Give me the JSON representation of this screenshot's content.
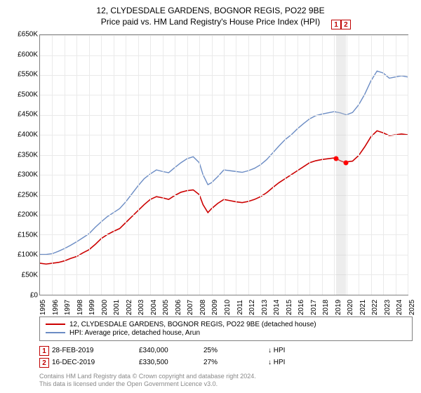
{
  "title_line1": "12, CLYDESDALE GARDENS, BOGNOR REGIS, PO22 9BE",
  "title_line2": "Price paid vs. HM Land Registry's House Price Index (HPI)",
  "chart": {
    "type": "line",
    "xlim": [
      1995,
      2025
    ],
    "ylim": [
      0,
      650000
    ],
    "ytick_step": 50000,
    "xtick_step": 1,
    "yticks": [
      "£0",
      "£50K",
      "£100K",
      "£150K",
      "£200K",
      "£250K",
      "£300K",
      "£350K",
      "£400K",
      "£450K",
      "£500K",
      "£550K",
      "£600K",
      "£650K"
    ],
    "xticks": [
      "1995",
      "1996",
      "1997",
      "1998",
      "1999",
      "2000",
      "2001",
      "2002",
      "2003",
      "2004",
      "2005",
      "2006",
      "2007",
      "2008",
      "2009",
      "2010",
      "2011",
      "2012",
      "2013",
      "2014",
      "2015",
      "2016",
      "2017",
      "2018",
      "2019",
      "2020",
      "2021",
      "2022",
      "2023",
      "2024",
      "2025"
    ],
    "grid_color": "#eaeaea",
    "border_color": "#808080",
    "background_color": "#ffffff",
    "series": [
      {
        "name": "property",
        "color": "#cc0000",
        "width": 1.6,
        "data": [
          [
            1995,
            78000
          ],
          [
            1995.5,
            76000
          ],
          [
            1996,
            78000
          ],
          [
            1996.5,
            80000
          ],
          [
            1997,
            84000
          ],
          [
            1997.5,
            90000
          ],
          [
            1998,
            95000
          ],
          [
            1998.5,
            104000
          ],
          [
            1999,
            112000
          ],
          [
            1999.5,
            125000
          ],
          [
            2000,
            140000
          ],
          [
            2000.5,
            150000
          ],
          [
            2001,
            158000
          ],
          [
            2001.5,
            165000
          ],
          [
            2002,
            180000
          ],
          [
            2002.5,
            195000
          ],
          [
            2003,
            210000
          ],
          [
            2003.5,
            225000
          ],
          [
            2004,
            238000
          ],
          [
            2004.5,
            245000
          ],
          [
            2005,
            242000
          ],
          [
            2005.5,
            238000
          ],
          [
            2006,
            248000
          ],
          [
            2006.5,
            256000
          ],
          [
            2007,
            260000
          ],
          [
            2007.5,
            262000
          ],
          [
            2008,
            250000
          ],
          [
            2008.3,
            225000
          ],
          [
            2008.7,
            205000
          ],
          [
            2009,
            215000
          ],
          [
            2009.5,
            228000
          ],
          [
            2010,
            238000
          ],
          [
            2010.5,
            235000
          ],
          [
            2011,
            232000
          ],
          [
            2011.5,
            230000
          ],
          [
            2012,
            233000
          ],
          [
            2012.5,
            238000
          ],
          [
            2013,
            245000
          ],
          [
            2013.5,
            255000
          ],
          [
            2014,
            268000
          ],
          [
            2014.5,
            280000
          ],
          [
            2015,
            290000
          ],
          [
            2015.5,
            300000
          ],
          [
            2016,
            310000
          ],
          [
            2016.5,
            320000
          ],
          [
            2017,
            330000
          ],
          [
            2017.5,
            335000
          ],
          [
            2018,
            338000
          ],
          [
            2018.5,
            340000
          ],
          [
            2019,
            342000
          ],
          [
            2019.2,
            340000
          ],
          [
            2019.5,
            335000
          ],
          [
            2019.9,
            330500
          ],
          [
            2020,
            332000
          ],
          [
            2020.5,
            334000
          ],
          [
            2021,
            348000
          ],
          [
            2021.5,
            370000
          ],
          [
            2022,
            395000
          ],
          [
            2022.5,
            410000
          ],
          [
            2023,
            405000
          ],
          [
            2023.5,
            398000
          ],
          [
            2024,
            400000
          ],
          [
            2024.5,
            402000
          ],
          [
            2025,
            400000
          ]
        ]
      },
      {
        "name": "hpi",
        "color": "#6b8cc4",
        "width": 1.4,
        "data": [
          [
            1995,
            100000
          ],
          [
            1995.5,
            100000
          ],
          [
            1996,
            102000
          ],
          [
            1996.5,
            108000
          ],
          [
            1997,
            115000
          ],
          [
            1997.5,
            123000
          ],
          [
            1998,
            132000
          ],
          [
            1998.5,
            142000
          ],
          [
            1999,
            152000
          ],
          [
            1999.5,
            168000
          ],
          [
            2000,
            182000
          ],
          [
            2000.5,
            195000
          ],
          [
            2001,
            205000
          ],
          [
            2001.5,
            215000
          ],
          [
            2002,
            232000
          ],
          [
            2002.5,
            252000
          ],
          [
            2003,
            272000
          ],
          [
            2003.5,
            290000
          ],
          [
            2004,
            302000
          ],
          [
            2004.5,
            312000
          ],
          [
            2005,
            308000
          ],
          [
            2005.5,
            305000
          ],
          [
            2006,
            318000
          ],
          [
            2006.5,
            330000
          ],
          [
            2007,
            340000
          ],
          [
            2007.5,
            345000
          ],
          [
            2008,
            330000
          ],
          [
            2008.3,
            300000
          ],
          [
            2008.7,
            275000
          ],
          [
            2009,
            280000
          ],
          [
            2009.5,
            295000
          ],
          [
            2010,
            312000
          ],
          [
            2010.5,
            310000
          ],
          [
            2011,
            308000
          ],
          [
            2011.5,
            306000
          ],
          [
            2012,
            310000
          ],
          [
            2012.5,
            316000
          ],
          [
            2013,
            325000
          ],
          [
            2013.5,
            338000
          ],
          [
            2014,
            355000
          ],
          [
            2014.5,
            372000
          ],
          [
            2015,
            388000
          ],
          [
            2015.5,
            400000
          ],
          [
            2016,
            415000
          ],
          [
            2016.5,
            428000
          ],
          [
            2017,
            440000
          ],
          [
            2017.5,
            448000
          ],
          [
            2018,
            452000
          ],
          [
            2018.5,
            455000
          ],
          [
            2019,
            458000
          ],
          [
            2019.5,
            455000
          ],
          [
            2020,
            450000
          ],
          [
            2020.5,
            456000
          ],
          [
            2021,
            475000
          ],
          [
            2021.5,
            502000
          ],
          [
            2022,
            535000
          ],
          [
            2022.5,
            560000
          ],
          [
            2023,
            555000
          ],
          [
            2023.5,
            542000
          ],
          [
            2024,
            545000
          ],
          [
            2024.5,
            548000
          ],
          [
            2025,
            545000
          ]
        ]
      }
    ],
    "markers": [
      {
        "num": "1",
        "x": 2019.16,
        "price": 340000
      },
      {
        "num": "2",
        "x": 2019.96,
        "price": 330500
      }
    ]
  },
  "legend": {
    "items": [
      {
        "color": "#cc0000",
        "label": "12, CLYDESDALE GARDENS, BOGNOR REGIS, PO22 9BE (detached house)"
      },
      {
        "color": "#6b8cc4",
        "label": "HPI: Average price, detached house, Arun"
      }
    ]
  },
  "transactions": [
    {
      "num": "1",
      "date": "28-FEB-2019",
      "price": "£340,000",
      "pct": "25%",
      "vs": "↓ HPI"
    },
    {
      "num": "2",
      "date": "16-DEC-2019",
      "price": "£330,500",
      "pct": "27%",
      "vs": "↓ HPI"
    }
  ],
  "footer_line1": "Contains HM Land Registry data © Crown copyright and database right 2024.",
  "footer_line2": "This data is licensed under the Open Government Licence v3.0."
}
